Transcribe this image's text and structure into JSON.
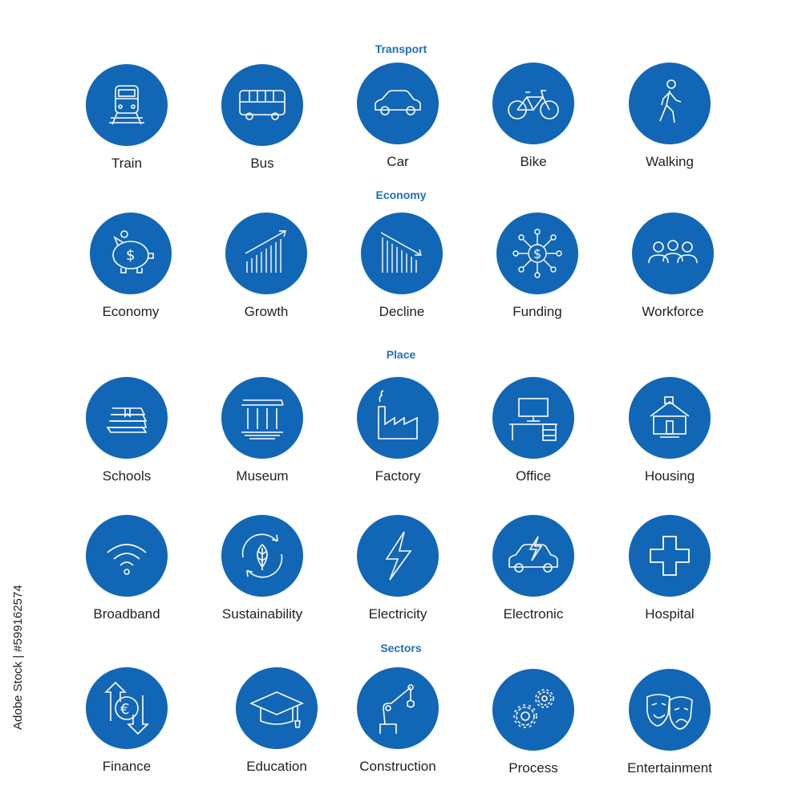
{
  "sections": {
    "transport": "Transport",
    "economy": "Economy",
    "place": "Place",
    "sectors": "Sectors"
  },
  "items": {
    "train": {
      "label": "Train",
      "icon": "train-icon"
    },
    "bus": {
      "label": "Bus",
      "icon": "bus-icon"
    },
    "car": {
      "label": "Car",
      "icon": "car-icon"
    },
    "bike": {
      "label": "Bike",
      "icon": "bike-icon"
    },
    "walking": {
      "label": "Walking",
      "icon": "walking-icon"
    },
    "economy": {
      "label": "Economy",
      "icon": "piggy-bank-icon"
    },
    "growth": {
      "label": "Growth",
      "icon": "growth-chart-icon"
    },
    "decline": {
      "label": "Decline",
      "icon": "decline-chart-icon"
    },
    "funding": {
      "label": "Funding",
      "icon": "funding-network-icon"
    },
    "workforce": {
      "label": "Workforce",
      "icon": "people-icon"
    },
    "schools": {
      "label": "Schools",
      "icon": "books-icon"
    },
    "museum": {
      "label": "Museum",
      "icon": "museum-icon"
    },
    "factory": {
      "label": "Factory",
      "icon": "factory-icon"
    },
    "office": {
      "label": "Office",
      "icon": "desk-icon"
    },
    "housing": {
      "label": "Housing",
      "icon": "house-icon"
    },
    "broadband": {
      "label": "Broadband",
      "icon": "wifi-icon"
    },
    "sustainability": {
      "label": "Sustainability",
      "icon": "leaf-cycle-icon"
    },
    "electricity": {
      "label": "Electricity",
      "icon": "lightning-icon"
    },
    "electronic": {
      "label": "Electronic",
      "icon": "electric-car-icon"
    },
    "hospital": {
      "label": "Hospital",
      "icon": "medical-cross-icon"
    },
    "finance": {
      "label": "Finance",
      "icon": "euro-exchange-icon"
    },
    "education": {
      "label": "Education",
      "icon": "graduation-cap-icon"
    },
    "construction": {
      "label": "Construction",
      "icon": "robot-arm-icon"
    },
    "process": {
      "label": "Process",
      "icon": "gears-icon"
    },
    "entertainment": {
      "label": "Entertainment",
      "icon": "theater-masks-icon"
    }
  },
  "stock_id": "Adobe Stock | #599162574",
  "colors": {
    "circle": "#1266b6",
    "title": "#1f6fb6",
    "text": "#222222"
  }
}
